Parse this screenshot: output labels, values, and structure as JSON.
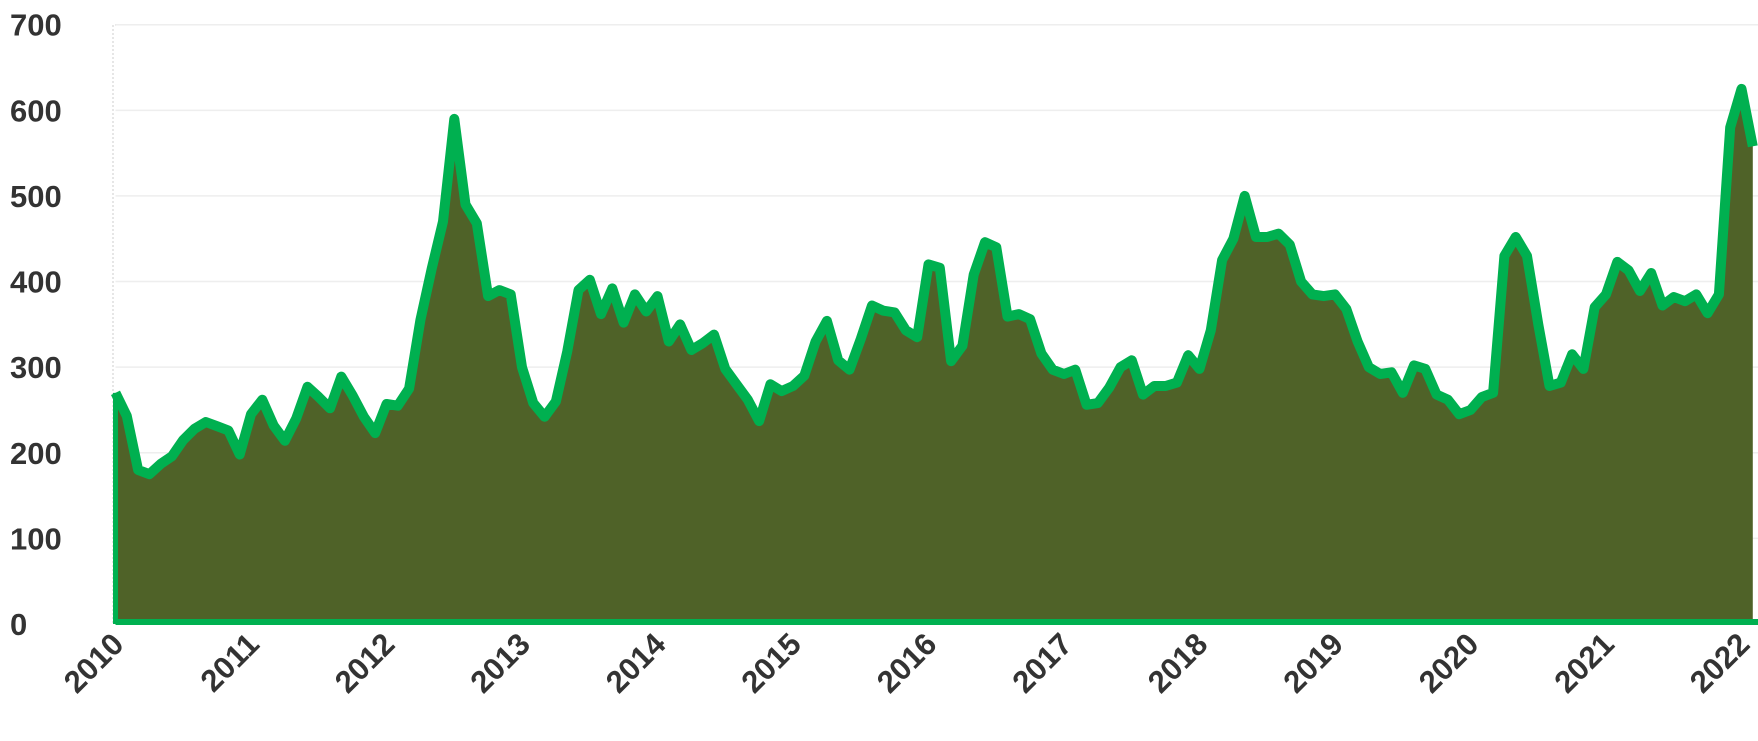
{
  "chart_data": {
    "type": "area",
    "categories": [
      "2010",
      null,
      null,
      null,
      null,
      null,
      null,
      null,
      null,
      null,
      null,
      null,
      "2011",
      null,
      null,
      null,
      null,
      null,
      null,
      null,
      null,
      null,
      null,
      null,
      "2012",
      null,
      null,
      null,
      null,
      null,
      null,
      null,
      null,
      null,
      null,
      null,
      "2013",
      null,
      null,
      null,
      null,
      null,
      null,
      null,
      null,
      null,
      null,
      null,
      "2014",
      null,
      null,
      null,
      null,
      null,
      null,
      null,
      null,
      null,
      null,
      null,
      "2015",
      null,
      null,
      null,
      null,
      null,
      null,
      null,
      null,
      null,
      null,
      null,
      "2016",
      null,
      null,
      null,
      null,
      null,
      null,
      null,
      null,
      null,
      null,
      null,
      "2017",
      null,
      null,
      null,
      null,
      null,
      null,
      null,
      null,
      null,
      null,
      null,
      "2018",
      null,
      null,
      null,
      null,
      null,
      null,
      null,
      null,
      null,
      null,
      null,
      "2019",
      null,
      null,
      null,
      null,
      null,
      null,
      null,
      null,
      null,
      null,
      null,
      "2020",
      null,
      null,
      null,
      null,
      null,
      null,
      null,
      null,
      null,
      null,
      null,
      "2021",
      null,
      null,
      null,
      null,
      null,
      null,
      null,
      null,
      null,
      null,
      null,
      "2022",
      null
    ],
    "values": [
      270,
      243,
      180,
      175,
      187,
      196,
      215,
      228,
      236,
      231,
      226,
      198,
      245,
      262,
      232,
      214,
      240,
      277,
      265,
      252,
      289,
      267,
      242,
      223,
      257,
      255,
      275,
      355,
      415,
      470,
      590,
      490,
      468,
      383,
      390,
      385,
      300,
      258,
      242,
      260,
      318,
      390,
      402,
      362,
      392,
      352,
      385,
      365,
      383,
      330,
      350,
      320,
      328,
      338,
      298,
      280,
      262,
      237,
      280,
      272,
      278,
      290,
      330,
      354,
      308,
      297,
      333,
      372,
      366,
      364,
      343,
      335,
      420,
      416,
      307,
      325,
      408,
      446,
      440,
      359,
      362,
      356,
      316,
      297,
      292,
      297,
      256,
      258,
      276,
      300,
      308,
      268,
      278,
      278,
      282,
      314,
      298,
      343,
      425,
      450,
      500,
      452,
      452,
      456,
      443,
      400,
      385,
      383,
      385,
      368,
      330,
      300,
      292,
      294,
      270,
      302,
      298,
      268,
      262,
      245,
      250,
      265,
      270,
      430,
      452,
      430,
      350,
      278,
      282,
      315,
      298,
      370,
      385,
      423,
      413,
      389,
      410,
      372,
      382,
      377,
      385,
      363,
      385,
      580,
      625,
      558
    ],
    "color": "#00b050",
    "fill": "#4f6228",
    "ylim": [
      0,
      700
    ],
    "yticks": [
      0,
      100,
      200,
      300,
      400,
      500,
      600,
      700
    ],
    "grid": true
  }
}
